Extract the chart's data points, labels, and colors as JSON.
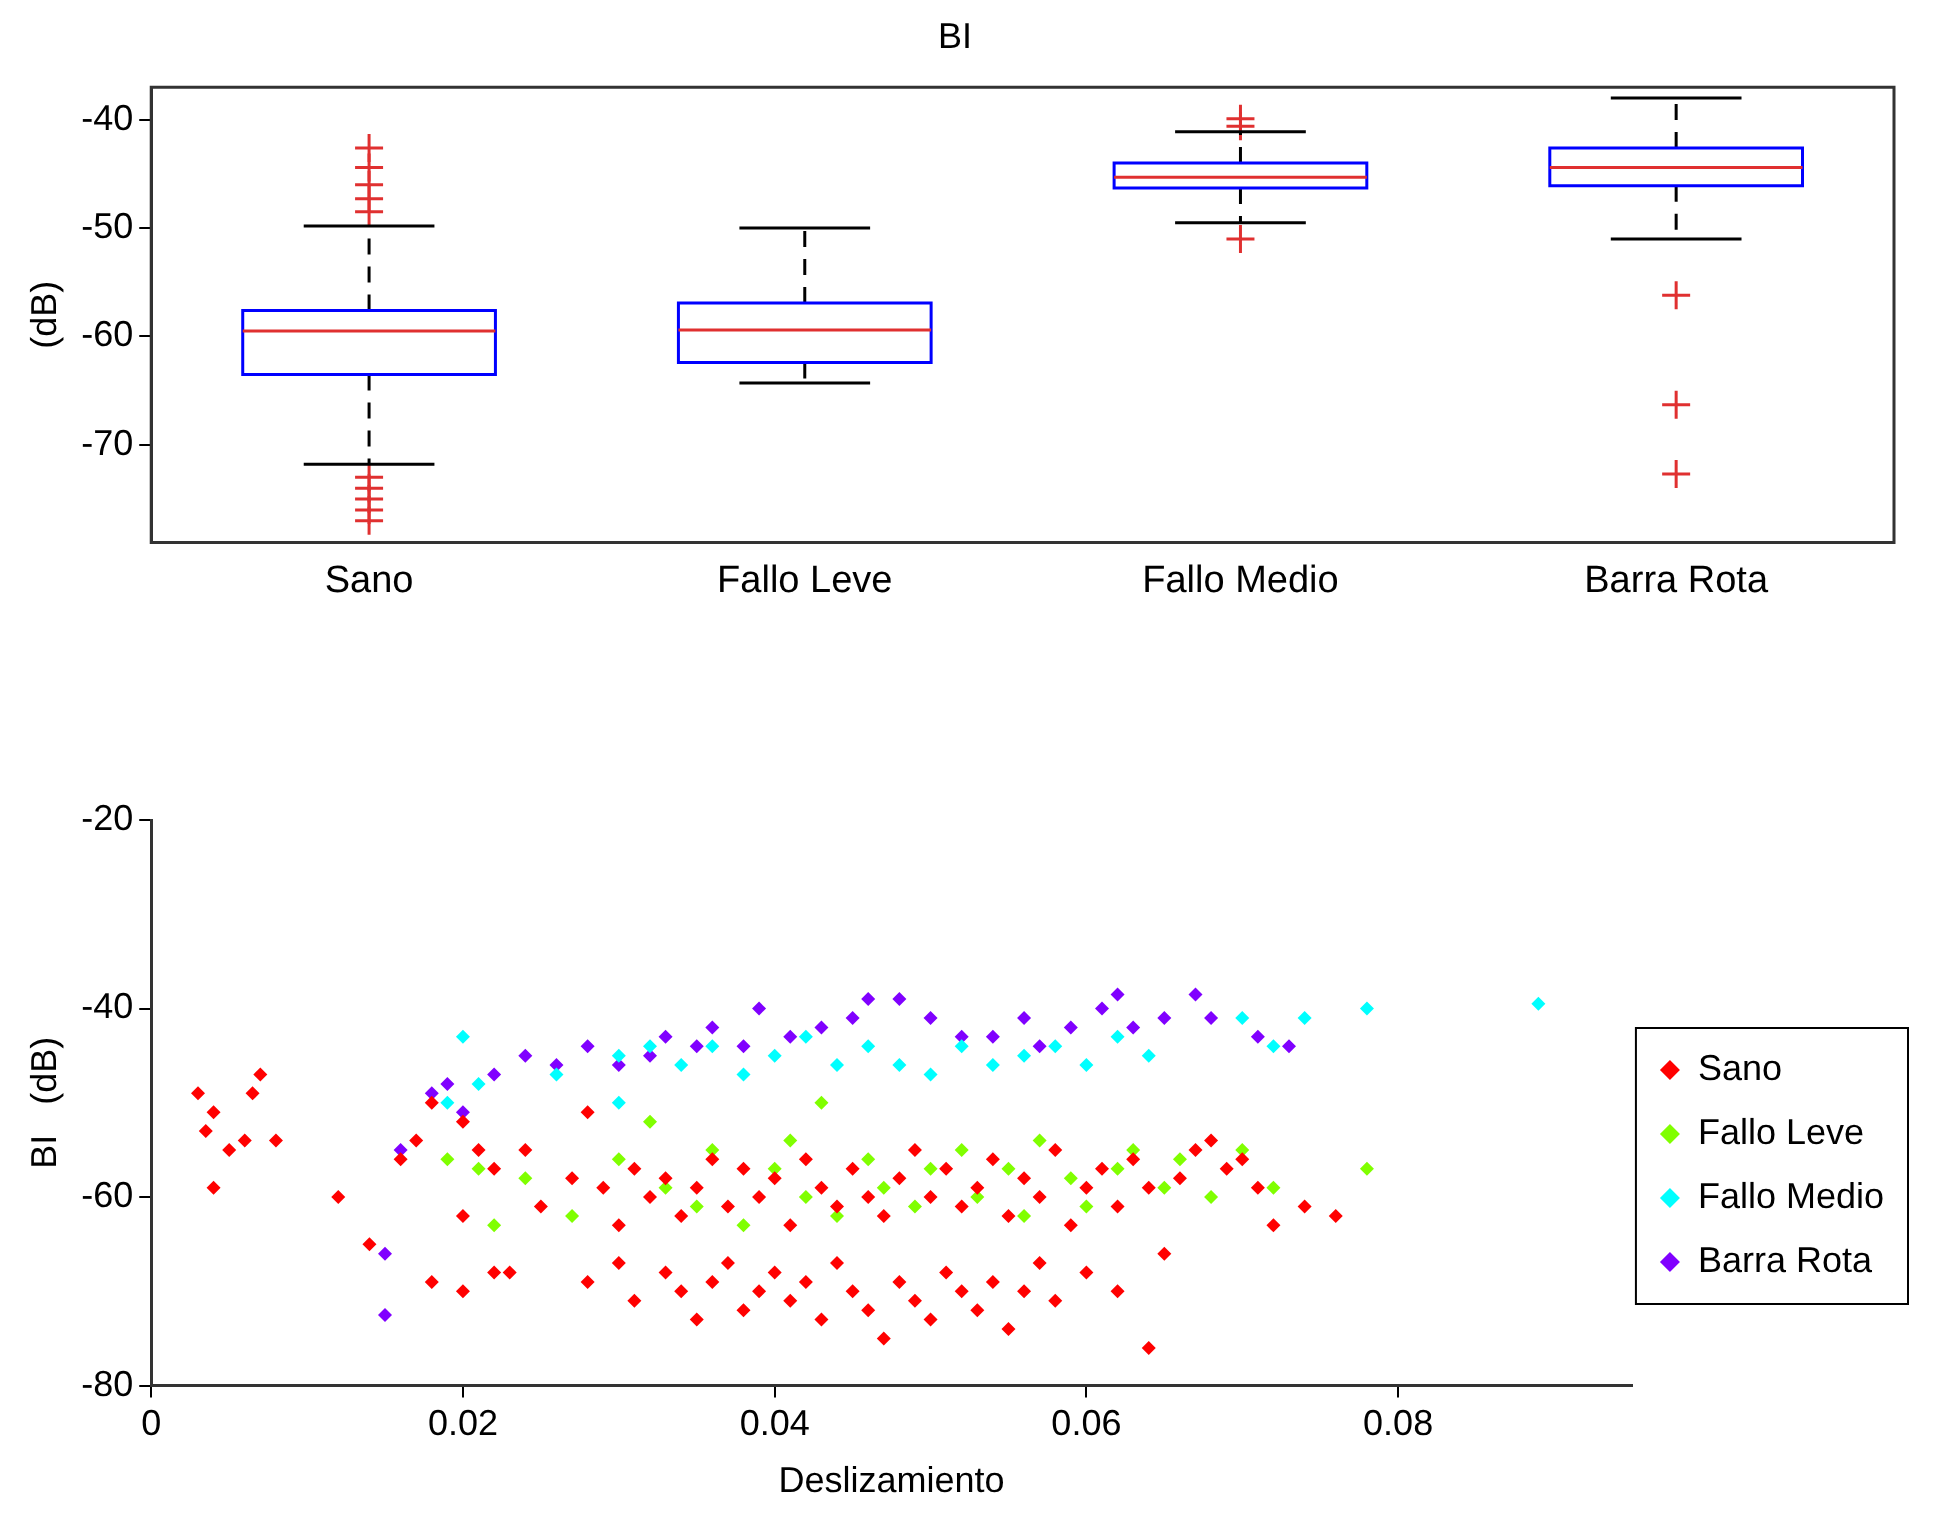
{
  "chart_data": [
    {
      "type": "box",
      "title": "BI",
      "ylabel": "(dB)",
      "categories": [
        "Sano",
        "Fallo Leve",
        "Fallo Medio",
        "Barra Rota"
      ],
      "ylim": [
        -79,
        -37
      ],
      "yticks": [
        -70,
        -60,
        -50,
        -40
      ],
      "grid": false,
      "legend": false,
      "marker": "cross",
      "series": [
        {
          "color": "#0000ff",
          "boxes": [
            {
              "low": -71.8,
              "q1": -63.5,
              "median": -59.5,
              "q3": -57.6,
              "high": -49.8,
              "outliers": [
                -42.6,
                -44.4,
                -46,
                -47.3,
                -48.5,
                -73,
                -74,
                -75,
                -76,
                -77
              ]
            },
            {
              "low": -64.3,
              "q1": -62.4,
              "median": -59.4,
              "q3": -56.9,
              "high": -50
            },
            {
              "low": -49.5,
              "q1": -46.3,
              "median": -45.3,
              "q3": -44,
              "high": -41.1,
              "outliers": [
                -39.9,
                -40.6,
                -51
              ]
            },
            {
              "low": -51,
              "q1": -46.1,
              "median": -44.4,
              "q3": -42.6,
              "high": -38,
              "outliers": [
                -56.2,
                -66.3,
                -72.7
              ]
            }
          ]
        }
      ]
    },
    {
      "type": "scatter",
      "xlabel": "Deslizamiento",
      "ylabel": "BI   (dB)",
      "xlim": [
        0,
        0.095
      ],
      "xticks": [
        0,
        0.02,
        0.04,
        0.06,
        0.08
      ],
      "ylim": [
        -80,
        -20
      ],
      "yticks": [
        -80,
        -60,
        -40,
        -20
      ],
      "grid": false,
      "legend": "right",
      "marker": "diamond",
      "series": [
        {
          "name": "Sano",
          "color": "#ff0000",
          "x": [
            0.003,
            0.004,
            0.0035,
            0.005,
            0.004,
            0.006,
            0.007,
            0.0065,
            0.008,
            0.012,
            0.014,
            0.016,
            0.017,
            0.018,
            0.02,
            0.021,
            0.022,
            0.02,
            0.023,
            0.024,
            0.025,
            0.027,
            0.028,
            0.029,
            0.03,
            0.031,
            0.032,
            0.033,
            0.034,
            0.035,
            0.036,
            0.037,
            0.038,
            0.039,
            0.04,
            0.041,
            0.042,
            0.043,
            0.044,
            0.045,
            0.046,
            0.047,
            0.048,
            0.049,
            0.05,
            0.051,
            0.052,
            0.053,
            0.054,
            0.055,
            0.056,
            0.057,
            0.058,
            0.059,
            0.06,
            0.061,
            0.062,
            0.063,
            0.064,
            0.066,
            0.067,
            0.068,
            0.069,
            0.07,
            0.071,
            0.072,
            0.074,
            0.076,
            0.028,
            0.03,
            0.031,
            0.033,
            0.034,
            0.035,
            0.036,
            0.037,
            0.038,
            0.039,
            0.04,
            0.041,
            0.042,
            0.043,
            0.044,
            0.045,
            0.046,
            0.047,
            0.048,
            0.049,
            0.05,
            0.051,
            0.052,
            0.053,
            0.054,
            0.055,
            0.056,
            0.057,
            0.058,
            0.06,
            0.062,
            0.064,
            0.065,
            0.018,
            0.02,
            0.022
          ],
          "values": [
            -49,
            -51,
            -53,
            -55,
            -59,
            -54,
            -47,
            -49,
            -54,
            -60,
            -65,
            -56,
            -54,
            -50,
            -52,
            -55,
            -57,
            -70,
            -68,
            -55,
            -61,
            -58,
            -51,
            -59,
            -63,
            -57,
            -60,
            -58,
            -62,
            -59,
            -56,
            -61,
            -57,
            -60,
            -58,
            -63,
            -56,
            -59,
            -61,
            -57,
            -60,
            -62,
            -58,
            -55,
            -60,
            -57,
            -61,
            -59,
            -56,
            -62,
            -58,
            -60,
            -55,
            -63,
            -59,
            -57,
            -61,
            -56,
            -59,
            -58,
            -55,
            -54,
            -57,
            -56,
            -59,
            -63,
            -61,
            -62,
            -69,
            -67,
            -71,
            -68,
            -70,
            -73,
            -69,
            -67,
            -72,
            -70,
            -68,
            -71,
            -69,
            -73,
            -67,
            -70,
            -72,
            -75,
            -69,
            -71,
            -73,
            -68,
            -70,
            -72,
            -69,
            -74,
            -70,
            -67,
            -71,
            -68,
            -70,
            -76,
            -66,
            -69,
            -62,
            -68
          ]
        },
        {
          "name": "Fallo Leve",
          "color": "#80ff00",
          "x": [
            0.019,
            0.021,
            0.022,
            0.024,
            0.027,
            0.03,
            0.032,
            0.033,
            0.035,
            0.036,
            0.038,
            0.04,
            0.041,
            0.042,
            0.043,
            0.044,
            0.046,
            0.047,
            0.049,
            0.05,
            0.052,
            0.053,
            0.055,
            0.056,
            0.057,
            0.059,
            0.06,
            0.062,
            0.063,
            0.065,
            0.066,
            0.068,
            0.07,
            0.072,
            0.078
          ],
          "values": [
            -56,
            -57,
            -63,
            -58,
            -62,
            -56,
            -52,
            -59,
            -61,
            -55,
            -63,
            -57,
            -54,
            -60,
            -50,
            -62,
            -56,
            -59,
            -61,
            -57,
            -55,
            -60,
            -57,
            -62,
            -54,
            -58,
            -61,
            -57,
            -55,
            -59,
            -56,
            -60,
            -55,
            -59,
            -57
          ]
        },
        {
          "name": "Fallo Medio",
          "color": "#00ffff",
          "x": [
            0.02,
            0.021,
            0.019,
            0.026,
            0.03,
            0.03,
            0.032,
            0.034,
            0.036,
            0.038,
            0.04,
            0.042,
            0.044,
            0.046,
            0.048,
            0.05,
            0.052,
            0.054,
            0.056,
            0.058,
            0.06,
            0.062,
            0.064,
            0.07,
            0.072,
            0.074,
            0.078,
            0.089
          ],
          "values": [
            -43,
            -48,
            -50,
            -47,
            -45,
            -50,
            -44,
            -46,
            -44,
            -47,
            -45,
            -43,
            -46,
            -44,
            -46,
            -47,
            -44,
            -46,
            -45,
            -44,
            -46,
            -43,
            -45,
            -41,
            -44,
            -41,
            -40,
            -39.5
          ]
        },
        {
          "name": "Barra Rota",
          "color": "#8000ff",
          "x": [
            0.015,
            0.015,
            0.016,
            0.018,
            0.019,
            0.02,
            0.022,
            0.024,
            0.026,
            0.028,
            0.03,
            0.032,
            0.033,
            0.035,
            0.036,
            0.038,
            0.039,
            0.041,
            0.043,
            0.045,
            0.046,
            0.048,
            0.05,
            0.052,
            0.054,
            0.056,
            0.057,
            0.059,
            0.061,
            0.062,
            0.063,
            0.065,
            0.067,
            0.068,
            0.071,
            0.073
          ],
          "values": [
            -66,
            -72.5,
            -55,
            -49,
            -48,
            -51,
            -47,
            -45,
            -46,
            -44,
            -46,
            -45,
            -43,
            -44,
            -42,
            -44,
            -40,
            -43,
            -42,
            -41,
            -39,
            -39,
            -41,
            -43,
            -43,
            -41,
            -44,
            -42,
            -40,
            -38.5,
            -42,
            -41,
            -38.5,
            -41,
            -43,
            -44
          ]
        }
      ]
    }
  ]
}
